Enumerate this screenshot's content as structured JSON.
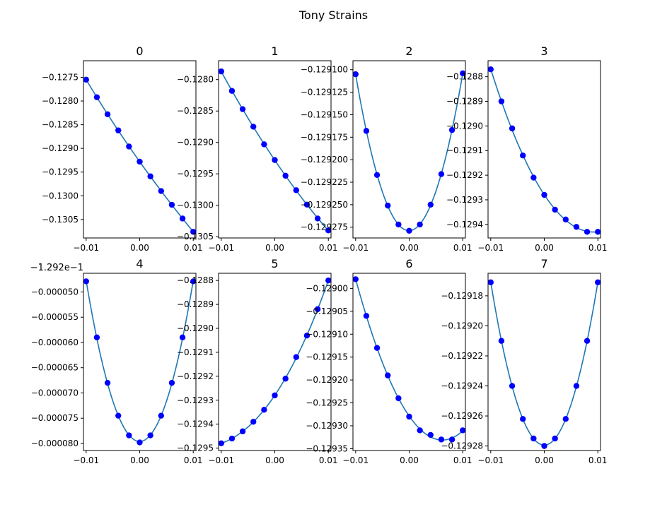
{
  "figure": {
    "suptitle": "Tony Strains"
  },
  "chart_data": [
    {
      "type": "scatter",
      "title": "0",
      "xticks": [
        "−0.01",
        "0.00",
        "0.01"
      ],
      "xlim": [
        -0.0105,
        0.0105
      ],
      "yticks": [
        -0.1275,
        -0.128,
        -0.1285,
        -0.129,
        -0.1295,
        -0.13,
        -0.1305
      ],
      "ytick_labels": [
        "−0.1275",
        "−0.1280",
        "−0.1285",
        "−0.1290",
        "−0.1295",
        "−0.1300",
        "−0.1305"
      ],
      "ylim": [
        -0.13089,
        -0.12715
      ],
      "x": [
        -0.01,
        -0.008,
        -0.006,
        -0.004,
        -0.002,
        0.0,
        0.002,
        0.004,
        0.006,
        0.008,
        0.01
      ],
      "y": [
        -0.12755,
        -0.12792,
        -0.12828,
        -0.12862,
        -0.12896,
        -0.12928,
        -0.12959,
        -0.1299,
        -0.13019,
        -0.13048,
        -0.13076
      ]
    },
    {
      "type": "scatter",
      "title": "1",
      "xticks": [
        "−0.01",
        "0.00",
        "0.01"
      ],
      "xlim": [
        -0.0105,
        0.0105
      ],
      "yticks": [
        -0.128,
        -0.1285,
        -0.129,
        -0.1295,
        -0.13,
        -0.1305
      ],
      "ytick_labels": [
        "−0.1280",
        "−0.1285",
        "−0.1290",
        "−0.1295",
        "−0.1300",
        "−0.1305"
      ],
      "ylim": [
        -0.13052,
        -0.1277
      ],
      "x": [
        -0.01,
        -0.008,
        -0.006,
        -0.004,
        -0.002,
        0.0,
        0.002,
        0.004,
        0.006,
        0.008,
        0.01
      ],
      "y": [
        -0.12787,
        -0.12818,
        -0.12847,
        -0.12875,
        -0.12903,
        -0.12928,
        -0.12953,
        -0.12976,
        -0.12999,
        -0.13021,
        -0.1304
      ]
    },
    {
      "type": "scatter",
      "title": "2",
      "xticks": [
        "−0.01",
        "0.00",
        "0.01"
      ],
      "xlim": [
        -0.0105,
        0.0105
      ],
      "yticks": [
        -0.1291,
        -0.129125,
        -0.12915,
        -0.129175,
        -0.1292,
        -0.129225,
        -0.12925,
        -0.129275
      ],
      "ytick_labels": [
        "−0.129100",
        "−0.129125",
        "−0.129150",
        "−0.129175",
        "−0.129200",
        "−0.129225",
        "−0.129250",
        "−0.129275"
      ],
      "ylim": [
        -0.129287,
        -0.12909
      ],
      "x": [
        -0.01,
        -0.008,
        -0.006,
        -0.004,
        -0.002,
        0.0,
        0.002,
        0.004,
        0.006,
        0.008,
        0.01
      ],
      "y": [
        -0.129105,
        -0.129168,
        -0.129217,
        -0.129251,
        -0.129272,
        -0.129279,
        -0.129272,
        -0.12925,
        -0.129216,
        -0.129167,
        -0.129104
      ]
    },
    {
      "type": "scatter",
      "title": "3",
      "xticks": [
        "−0.01",
        "0.00",
        "0.01"
      ],
      "xlim": [
        -0.0105,
        0.0105
      ],
      "yticks": [
        -0.1288,
        -0.1289,
        -0.129,
        -0.1291,
        -0.1292,
        -0.1293,
        -0.1294
      ],
      "ytick_labels": [
        "−0.1288",
        "−0.1289",
        "−0.1290",
        "−0.1291",
        "−0.1292",
        "−0.1293",
        "−0.1294"
      ],
      "ylim": [
        -0.129455,
        -0.128735
      ],
      "x": [
        -0.01,
        -0.008,
        -0.006,
        -0.004,
        -0.002,
        0.0,
        0.002,
        0.004,
        0.006,
        0.008,
        0.01
      ],
      "y": [
        -0.12877,
        -0.1289,
        -0.12901,
        -0.12912,
        -0.12921,
        -0.12928,
        -0.12934,
        -0.12938,
        -0.12941,
        -0.12943,
        -0.12943
      ]
    },
    {
      "type": "scatter",
      "title": "4",
      "offset_label": "−1.292e−1",
      "xticks": [
        "−0.01",
        "0.00",
        "0.01"
      ],
      "xlim": [
        -0.0105,
        0.0105
      ],
      "yticks": [
        -5e-05,
        -5.5e-05,
        -6e-05,
        -6.5e-05,
        -7e-05,
        -7.5e-05,
        -8e-05
      ],
      "ytick_labels": [
        "−0.000050",
        "−0.000055",
        "−0.000060",
        "−0.000065",
        "−0.000070",
        "−0.000075",
        "−0.000080"
      ],
      "ylim": [
        -8.14e-05,
        -4.63e-05
      ],
      "x": [
        -0.01,
        -0.008,
        -0.006,
        -0.004,
        -0.002,
        0.0,
        0.002,
        0.004,
        0.006,
        0.008,
        0.01
      ],
      "y": [
        -4.79e-05,
        -5.9e-05,
        -6.8e-05,
        -7.45e-05,
        -7.84e-05,
        -7.98e-05,
        -7.84e-05,
        -7.45e-05,
        -6.8e-05,
        -5.9e-05,
        -4.79e-05
      ]
    },
    {
      "type": "scatter",
      "title": "5",
      "xticks": [
        "−0.01",
        "0.00",
        "0.01"
      ],
      "xlim": [
        -0.0105,
        0.0105
      ],
      "yticks": [
        -0.1288,
        -0.1289,
        -0.129,
        -0.1291,
        -0.1292,
        -0.1293,
        -0.1294,
        -0.1295
      ],
      "ytick_labels": [
        "−0.1288",
        "−0.1289",
        "−0.1290",
        "−0.1291",
        "−0.1292",
        "−0.1293",
        "−0.1294",
        "−0.1295"
      ],
      "ylim": [
        -0.12951,
        -0.12877
      ],
      "x": [
        -0.01,
        -0.008,
        -0.006,
        -0.004,
        -0.002,
        0.0,
        0.002,
        0.004,
        0.006,
        0.008,
        0.01
      ],
      "y": [
        -0.12948,
        -0.12946,
        -0.12943,
        -0.12939,
        -0.12934,
        -0.12928,
        -0.12921,
        -0.12912,
        -0.12903,
        -0.12892,
        -0.1288
      ]
    },
    {
      "type": "scatter",
      "title": "6",
      "xticks": [
        "−0.01",
        "0.00",
        "0.01"
      ],
      "xlim": [
        -0.0105,
        0.0105
      ],
      "yticks": [
        -0.129,
        -0.12905,
        -0.1291,
        -0.12915,
        -0.1292,
        -0.12925,
        -0.1293,
        -0.12935
      ],
      "ytick_labels": [
        "−0.12900",
        "−0.12905",
        "−0.12910",
        "−0.12915",
        "−0.12920",
        "−0.12925",
        "−0.12930",
        "−0.12935"
      ],
      "ylim": [
        -0.129354,
        -0.128967
      ],
      "x": [
        -0.01,
        -0.008,
        -0.006,
        -0.004,
        -0.002,
        0.0,
        0.002,
        0.004,
        0.006,
        0.008,
        0.01
      ],
      "y": [
        -0.12898,
        -0.12906,
        -0.12913,
        -0.12919,
        -0.12924,
        -0.12928,
        -0.12931,
        -0.12932,
        -0.12933,
        -0.12933,
        -0.12931
      ]
    },
    {
      "type": "scatter",
      "title": "7",
      "xticks": [
        "−0.01",
        "0.00",
        "0.01"
      ],
      "xlim": [
        -0.0105,
        0.0105
      ],
      "yticks": [
        -0.12918,
        -0.1292,
        -0.12922,
        -0.12924,
        -0.12926,
        -0.12928
      ],
      "ytick_labels": [
        "−0.12918",
        "−0.12920",
        "−0.12922",
        "−0.12924",
        "−0.12926",
        "−0.12928"
      ],
      "ylim": [
        -0.129283,
        -0.129165
      ],
      "x": [
        -0.01,
        -0.008,
        -0.006,
        -0.004,
        -0.002,
        0.0,
        0.002,
        0.004,
        0.006,
        0.008,
        0.01
      ],
      "y": [
        -0.129171,
        -0.12921,
        -0.12924,
        -0.129262,
        -0.129275,
        -0.12928,
        -0.129275,
        -0.129262,
        -0.12924,
        -0.12921,
        -0.129171
      ]
    }
  ],
  "colors": {
    "fit_line": "#1f77b4",
    "points": "#0000ff"
  }
}
